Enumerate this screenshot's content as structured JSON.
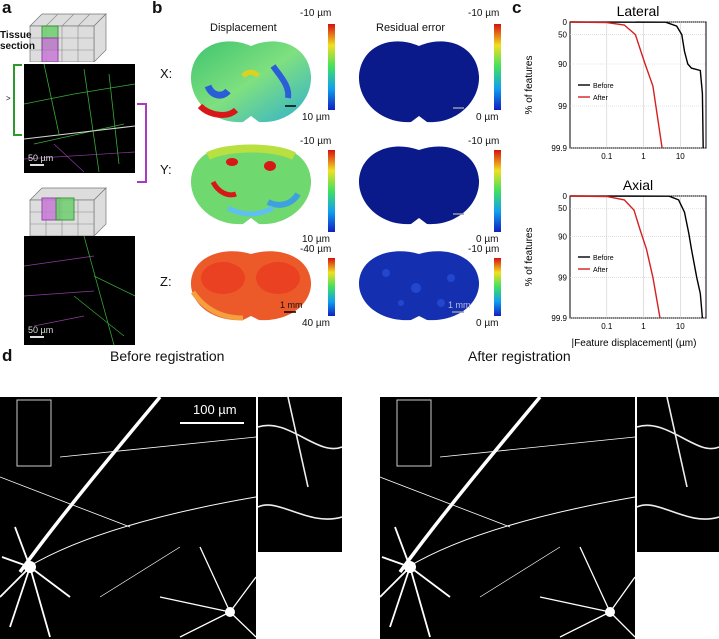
{
  "panel_a": {
    "letter": "a",
    "tissue_label": "Tissue\nsection",
    "scale_top": "50 µm",
    "scale_bottom": "50 µm"
  },
  "panel_b": {
    "letter": "b",
    "col_displacement": "Displacement",
    "col_residual": "Residual error",
    "row_labels": [
      "X:",
      "Y:",
      "Z:"
    ],
    "cbar_x_disp": [
      "-10 µm",
      "10 µm"
    ],
    "cbar_x_res": [
      "-10 µm",
      "0 µm"
    ],
    "cbar_y_disp": [
      "-10 µm",
      "10 µm"
    ],
    "cbar_y_res": [
      "-10 µm",
      "0 µm"
    ],
    "cbar_z_disp": [
      "-40 µm",
      "40 µm"
    ],
    "cbar_z_res": [
      "-10 µm",
      "0 µm"
    ],
    "scale_label": "1 mm"
  },
  "panel_c": {
    "letter": "c",
    "ylabel": "% of features",
    "xlabel": "|Feature displacement| (µm)",
    "colors": {
      "before": "#000000",
      "after": "#d42020"
    }
  },
  "chart_data": [
    {
      "type": "line",
      "title": "Lateral",
      "xlabel": "",
      "ylabel": "% of features",
      "x_scale": "log",
      "xlim": [
        0.01,
        50
      ],
      "xticks": [
        "0.1",
        "1",
        "10"
      ],
      "yticks": [
        "0",
        "50",
        "90",
        "99",
        "99.9"
      ],
      "legend_position": "middle-left",
      "series": [
        {
          "name": "Before",
          "color": "#000000",
          "points": [
            [
              0.01,
              0
            ],
            [
              4,
              1
            ],
            [
              8,
              20
            ],
            [
              11,
              50
            ],
            [
              13,
              80
            ],
            [
              16,
              90
            ],
            [
              20,
              92
            ],
            [
              35,
              93
            ],
            [
              40,
              98
            ],
            [
              42,
              99.9
            ]
          ]
        },
        {
          "name": "After",
          "color": "#d42020",
          "points": [
            [
              0.01,
              0
            ],
            [
              0.1,
              3
            ],
            [
              0.3,
              15
            ],
            [
              0.6,
              50
            ],
            [
              0.85,
              80
            ],
            [
              1.1,
              90
            ],
            [
              1.8,
              97
            ],
            [
              3.2,
              99.9
            ]
          ]
        }
      ]
    },
    {
      "type": "line",
      "title": "Axial",
      "xlabel": "|Feature displacement| (µm)",
      "ylabel": "% of features",
      "x_scale": "log",
      "xlim": [
        0.01,
        50
      ],
      "xticks": [
        "0.1",
        "1",
        "10"
      ],
      "yticks": [
        "0",
        "50",
        "90",
        "99",
        "99.9"
      ],
      "legend_position": "middle-left",
      "series": [
        {
          "name": "Before",
          "color": "#000000",
          "points": [
            [
              0.01,
              0
            ],
            [
              5,
              1
            ],
            [
              9,
              20
            ],
            [
              13,
              60
            ],
            [
              17,
              88
            ],
            [
              20,
              95
            ],
            [
              28,
              99
            ],
            [
              35,
              99.6
            ],
            [
              40,
              99.9
            ]
          ]
        },
        {
          "name": "After",
          "color": "#d42020",
          "points": [
            [
              0.01,
              0
            ],
            [
              0.1,
              3
            ],
            [
              0.3,
              20
            ],
            [
              0.55,
              55
            ],
            [
              0.8,
              85
            ],
            [
              1.2,
              95
            ],
            [
              1.8,
              99
            ],
            [
              2.8,
              99.9
            ]
          ]
        }
      ]
    }
  ],
  "panel_d": {
    "letter": "d",
    "before_title": "Before registration",
    "after_title": "After registration",
    "scale_label": "100 µm"
  }
}
